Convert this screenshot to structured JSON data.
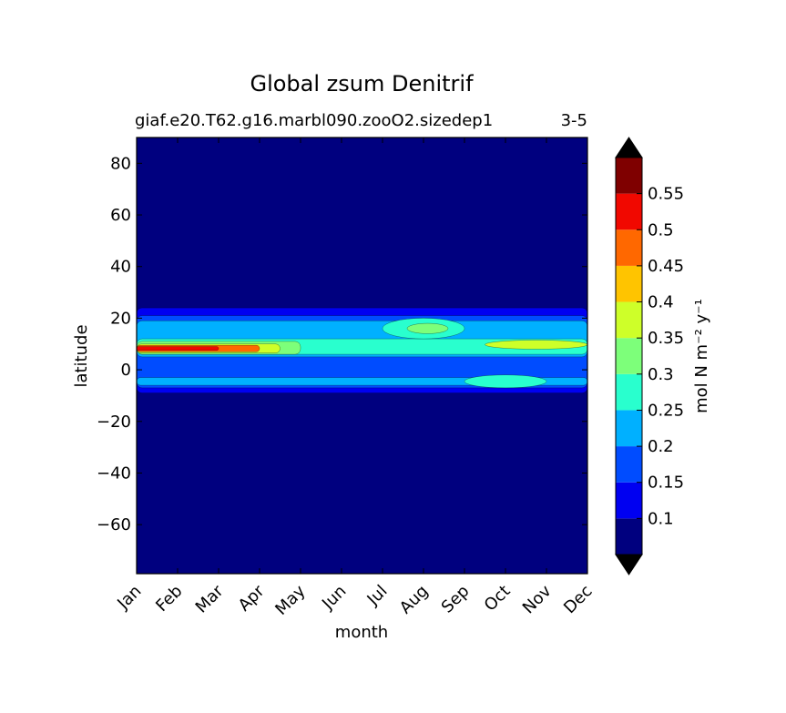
{
  "chart_data": {
    "type": "heatmap",
    "title": "Global zsum Denitrif",
    "subtitle_left": "giaf.e20.T62.g16.marbl090.zooO2.sizedep1",
    "subtitle_right": "3-5",
    "xlabel": "month",
    "ylabel": "latitude",
    "x_categories": [
      "Jan",
      "Feb",
      "Mar",
      "Apr",
      "May",
      "Jun",
      "Jul",
      "Aug",
      "Sep",
      "Oct",
      "Nov",
      "Dec"
    ],
    "y_ticks": [
      -60,
      -40,
      -20,
      0,
      20,
      40,
      60,
      80
    ],
    "ylim": [
      -79,
      90
    ],
    "colorbar": {
      "label": "mol N m⁻² y⁻¹",
      "levels": [
        0.05,
        0.1,
        0.15,
        0.2,
        0.25,
        0.3,
        0.35,
        0.4,
        0.45,
        0.5,
        0.55,
        0.6
      ],
      "tick_labels": [
        "0.1",
        "0.15",
        "0.2",
        "0.25",
        "0.3",
        "0.35",
        "0.4",
        "0.45",
        "0.5",
        "0.55"
      ],
      "colors": [
        "#00007f",
        "#0000f1",
        "#004cff",
        "#00b0ff",
        "#29ffce",
        "#7dff7a",
        "#ceff29",
        "#ffc400",
        "#ff6800",
        "#f10800",
        "#7f0000"
      ],
      "extend": "both",
      "under_color": "#000000",
      "over_color": "#000000"
    },
    "features": [
      {
        "description": "band",
        "month_range": [
          0,
          11
        ],
        "lat_range": [
          -9,
          24
        ],
        "value": 0.1
      },
      {
        "description": "band",
        "month_range": [
          0,
          11
        ],
        "lat_range": [
          -7,
          21
        ],
        "value": 0.15
      },
      {
        "description": "band",
        "month_range": [
          0,
          11
        ],
        "lat_range": [
          5,
          19
        ],
        "value": 0.2
      },
      {
        "description": "band",
        "month_range": [
          0,
          11
        ],
        "lat_range": [
          -6,
          -3
        ],
        "value": 0.2
      },
      {
        "description": "band",
        "month_range": [
          0,
          11
        ],
        "lat_range": [
          6,
          12
        ],
        "value": 0.25
      },
      {
        "description": "core",
        "month_range": [
          0,
          4
        ],
        "lat_range": [
          6,
          11
        ],
        "value": 0.3
      },
      {
        "description": "core",
        "month_range": [
          0,
          3.5
        ],
        "lat_range": [
          6.5,
          10
        ],
        "value": 0.35
      },
      {
        "description": "core",
        "month_range": [
          0,
          3
        ],
        "lat_range": [
          7,
          9.5
        ],
        "value": 0.45
      },
      {
        "description": "core",
        "month_range": [
          0,
          2
        ],
        "lat_range": [
          7.5,
          9
        ],
        "value": 0.5
      },
      {
        "description": "blob",
        "month_range": [
          6,
          8
        ],
        "lat_range": [
          12,
          20
        ],
        "value": 0.25
      },
      {
        "description": "blob",
        "month_range": [
          6.6,
          7.6
        ],
        "lat_range": [
          14,
          18
        ],
        "value": 0.3
      },
      {
        "description": "blob",
        "month_range": [
          8,
          10
        ],
        "lat_range": [
          -7,
          -2
        ],
        "value": 0.25
      },
      {
        "description": "blob",
        "month_range": [
          8.5,
          11
        ],
        "lat_range": [
          8,
          11.5
        ],
        "value": 0.35
      }
    ]
  }
}
